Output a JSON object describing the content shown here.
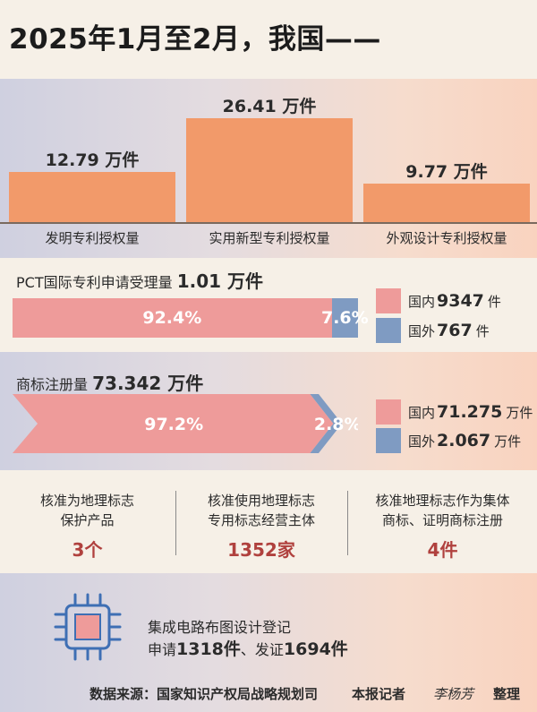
{
  "title": "2025年1月至2月，我国——",
  "patents": {
    "chart_data": {
      "type": "bar",
      "categories": [
        "发明专利授权量",
        "实用新型专利授权量",
        "外观设计专利授权量"
      ],
      "values": [
        12.79,
        26.41,
        9.77
      ],
      "value_labels": [
        "12.79 万件",
        "26.41 万件",
        "9.77 万件"
      ],
      "ylim": [
        0,
        30
      ]
    },
    "color": "#f29a6a"
  },
  "pct": {
    "title_prefix": "PCT国际专利申请受理量",
    "title_value": "1.01 万件",
    "chart_data": {
      "type": "bar",
      "stacked": true,
      "series": [
        {
          "name": "国内",
          "values": [
            92.4
          ]
        },
        {
          "name": "国外",
          "values": [
            7.6
          ]
        }
      ]
    },
    "segments": [
      "92.4%",
      "7.6%"
    ],
    "legend": [
      {
        "label": "国内",
        "value": "9347",
        "unit": "件",
        "color": "#ee9b9a"
      },
      {
        "label": "国外",
        "value": "767",
        "unit": "件",
        "color": "#7f9bc2"
      }
    ]
  },
  "trademark": {
    "title_prefix": "商标注册量",
    "title_value": "73.342 万件",
    "chart_data": {
      "type": "bar",
      "stacked": true,
      "series": [
        {
          "name": "国内",
          "values": [
            97.2
          ]
        },
        {
          "name": "国外",
          "values": [
            2.8
          ]
        }
      ]
    },
    "segments": [
      "97.2%",
      "2.8%"
    ],
    "legend": [
      {
        "label": "国内",
        "value": "71.275",
        "unit": "万件",
        "color": "#ee9b9a"
      },
      {
        "label": "国外",
        "value": "2.067",
        "unit": "万件",
        "color": "#7f9bc2"
      }
    ]
  },
  "geo": [
    {
      "line1": "核准为地理标志",
      "line2": "保护产品",
      "value": "3个"
    },
    {
      "line1": "核准使用地理标志",
      "line2": "专用标志经营主体",
      "value": "1352家"
    },
    {
      "line1": "核准地理标志作为集体",
      "line2": "商标、证明商标注册",
      "value": "4件"
    }
  ],
  "ic": {
    "icon": "chip-icon",
    "line1": "集成电路布图设计登记",
    "p1": "申请",
    "v1": "1318件",
    "p2": "、发证",
    "v2": "1694件"
  },
  "footer": {
    "source": "数据来源：国家知识产权局战略规划司",
    "reporter": "本报记者",
    "signature": "李杨芳",
    "end": "整理"
  }
}
